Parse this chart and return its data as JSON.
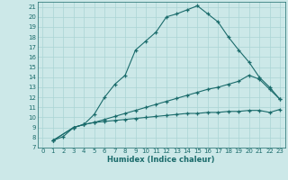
{
  "xlabel": "Humidex (Indice chaleur)",
  "bg_color": "#cce8e8",
  "line_color": "#1a6b6b",
  "grid_color": "#aad4d4",
  "xlim": [
    -0.5,
    23.5
  ],
  "ylim": [
    7,
    21.5
  ],
  "xticks": [
    0,
    1,
    2,
    3,
    4,
    5,
    6,
    7,
    8,
    9,
    10,
    11,
    12,
    13,
    14,
    15,
    16,
    17,
    18,
    19,
    20,
    21,
    22,
    23
  ],
  "yticks": [
    7,
    8,
    9,
    10,
    11,
    12,
    13,
    14,
    15,
    16,
    17,
    18,
    19,
    20,
    21
  ],
  "line1_x": [
    1,
    2,
    3,
    4,
    5,
    6,
    7,
    8,
    9,
    10,
    11,
    12,
    13,
    14,
    15,
    16,
    17,
    18,
    19,
    20,
    21,
    22,
    23
  ],
  "line1_y": [
    7.7,
    8.1,
    9.0,
    9.3,
    10.3,
    12.0,
    13.3,
    14.2,
    16.7,
    17.6,
    18.5,
    20.0,
    20.3,
    20.7,
    21.1,
    20.3,
    19.5,
    18.0,
    16.7,
    15.5,
    14.0,
    13.0,
    11.8
  ],
  "line2_x": [
    1,
    3,
    4,
    5,
    6,
    7,
    8,
    9,
    10,
    11,
    12,
    13,
    14,
    15,
    16,
    17,
    18,
    19,
    20,
    21,
    22,
    23
  ],
  "line2_y": [
    7.7,
    9.0,
    9.3,
    9.5,
    9.8,
    10.1,
    10.4,
    10.7,
    11.0,
    11.3,
    11.6,
    11.9,
    12.2,
    12.5,
    12.8,
    13.0,
    13.3,
    13.6,
    14.2,
    13.8,
    12.8,
    11.8
  ],
  "line3_x": [
    1,
    3,
    4,
    5,
    6,
    7,
    8,
    9,
    10,
    11,
    12,
    13,
    14,
    15,
    16,
    17,
    18,
    19,
    20,
    21,
    22,
    23
  ],
  "line3_y": [
    7.7,
    9.0,
    9.3,
    9.5,
    9.6,
    9.7,
    9.8,
    9.9,
    10.0,
    10.1,
    10.2,
    10.3,
    10.4,
    10.4,
    10.5,
    10.5,
    10.6,
    10.6,
    10.7,
    10.7,
    10.5,
    10.8
  ]
}
